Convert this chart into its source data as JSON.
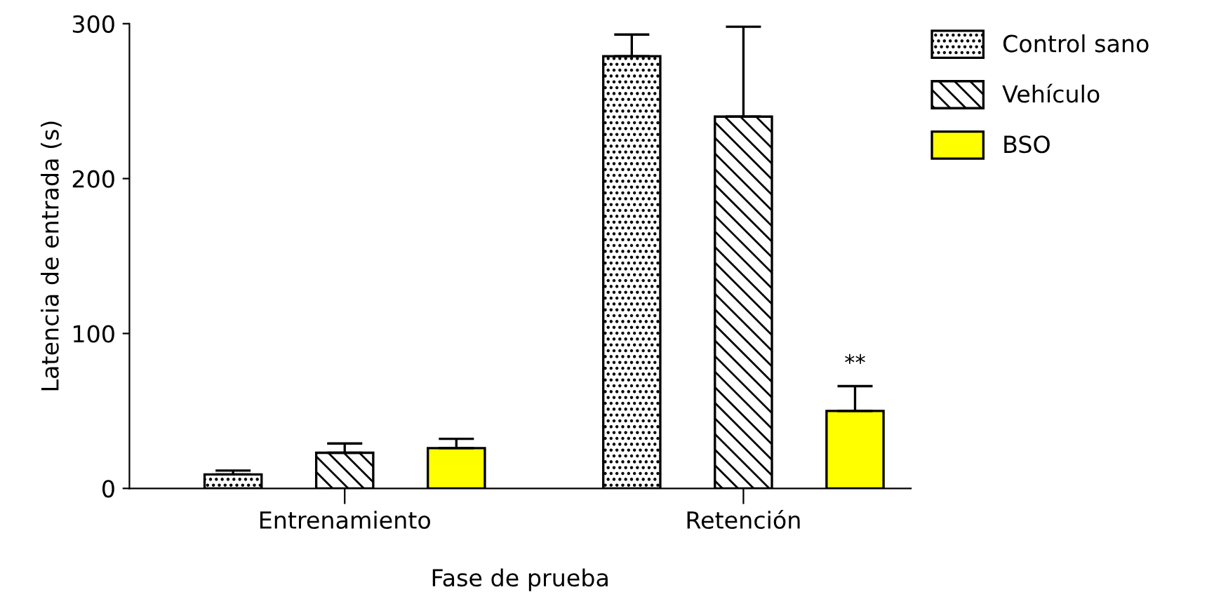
{
  "chart_data": {
    "type": "bar",
    "xlabel": "Fase de prueba",
    "ylabel": "Latencia de entrada (s)",
    "categories": [
      "Entrenamiento",
      "Retención"
    ],
    "series": [
      {
        "name": "Control sano",
        "color": "#000000",
        "values": [
          9,
          279
        ],
        "errors": [
          [
            9,
            11.5
          ],
          [
            279,
            293
          ]
        ]
      },
      {
        "name": "Vehículo",
        "color": "#000000",
        "values": [
          23,
          240
        ],
        "errors": [
          [
            23,
            29
          ],
          [
            240,
            298
          ]
        ]
      },
      {
        "name": "BSO",
        "color": "#ffff00",
        "values": [
          26,
          50
        ],
        "errors": [
          [
            26,
            32
          ],
          [
            50,
            66
          ]
        ]
      }
    ],
    "ylim": [
      0,
      300
    ],
    "yticks": [
      0,
      100,
      200,
      300
    ],
    "legend": "top right",
    "grid": false,
    "annotations": [
      "**"
    ]
  }
}
